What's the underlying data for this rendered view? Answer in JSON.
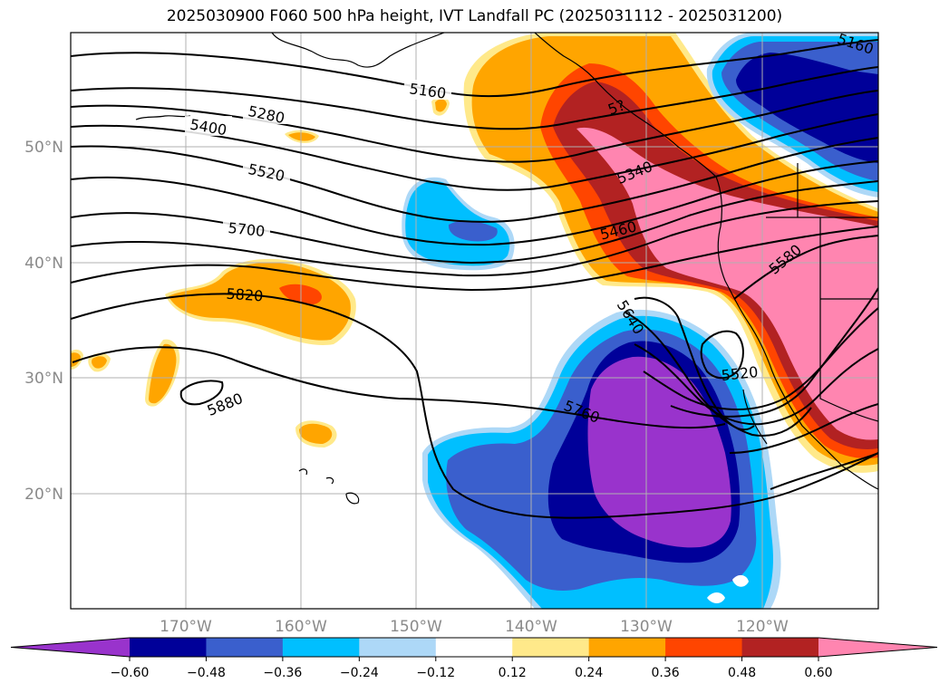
{
  "title": "2025030900 F060 500 hPa height, IVT Landfall PC (2025031112 - 2025031200)",
  "map": {
    "lat_labels": [
      "50°N",
      "40°N",
      "30°N",
      "20°N"
    ],
    "lon_labels": [
      "170°W",
      "160°W",
      "150°W",
      "140°W",
      "130°W",
      "120°W"
    ],
    "contour_labels": [
      "5160",
      "5280",
      "5400",
      "5520",
      "5700",
      "5820",
      "5880",
      "5340",
      "5460",
      "5580",
      "5640",
      "5760",
      "5520",
      "5160",
      "5?"
    ]
  },
  "colorbar": {
    "colors": [
      "#9933cc",
      "#000099",
      "#3a5fcd",
      "#00bfff",
      "#add8f7",
      "#ffffff",
      "#ffe98a",
      "#ffa500",
      "#ff4500",
      "#b22222",
      "#ff85b0"
    ],
    "ticks": [
      "−0.60",
      "−0.48",
      "−0.36",
      "−0.24",
      "−0.12",
      "0.12",
      "0.24",
      "0.36",
      "0.48",
      "0.60"
    ]
  }
}
